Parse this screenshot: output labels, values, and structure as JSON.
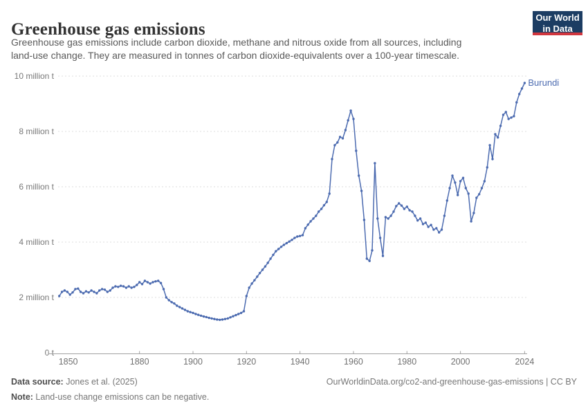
{
  "header": {
    "title": "Greenhouse gas emissions",
    "subtitle_line1": "Greenhouse gas emissions include carbon dioxide, methane and nitrous oxide from all sources, including",
    "subtitle_line2": "land-use change. They are measured in tonnes of carbon dioxide-equivalents over a 100-year timescale.",
    "logo": {
      "line1": "Our World",
      "line2": "in Data",
      "bg_color": "#1c3d63",
      "bar_color": "#d1363e"
    }
  },
  "chart_data": {
    "type": "line",
    "title": "Greenhouse gas emissions",
    "entity": "Burundi",
    "line_color": "#4c6bb0",
    "grid": "horizontal dashed",
    "y_unit": "million tonnes CO2-equivalents",
    "ylim_million_t": [
      0,
      10
    ],
    "x_tick_years": [
      1850,
      1880,
      1900,
      1920,
      1940,
      1960,
      1980,
      2000,
      2024
    ],
    "y_ticks": [
      {
        "value": 0,
        "label": "0 t"
      },
      {
        "value": 2,
        "label": "2 million t"
      },
      {
        "value": 4,
        "label": "4 million t"
      },
      {
        "value": 6,
        "label": "6 million t"
      },
      {
        "value": 8,
        "label": "8 million t"
      },
      {
        "value": 10,
        "label": "10 million t"
      }
    ],
    "x_start_year": 1850,
    "x_end_year": 2024,
    "values_million_t": [
      2.05,
      2.2,
      2.25,
      2.2,
      2.1,
      2.18,
      2.3,
      2.32,
      2.2,
      2.15,
      2.22,
      2.18,
      2.25,
      2.2,
      2.15,
      2.25,
      2.3,
      2.28,
      2.2,
      2.25,
      2.35,
      2.4,
      2.38,
      2.42,
      2.4,
      2.35,
      2.4,
      2.35,
      2.38,
      2.45,
      2.55,
      2.48,
      2.6,
      2.55,
      2.5,
      2.55,
      2.58,
      2.6,
      2.52,
      2.3,
      2.0,
      1.9,
      1.83,
      1.78,
      1.7,
      1.65,
      1.6,
      1.55,
      1.5,
      1.47,
      1.44,
      1.4,
      1.37,
      1.34,
      1.31,
      1.29,
      1.26,
      1.24,
      1.22,
      1.2,
      1.19,
      1.2,
      1.22,
      1.24,
      1.28,
      1.32,
      1.36,
      1.4,
      1.44,
      1.5,
      2.05,
      2.35,
      2.5,
      2.62,
      2.75,
      2.88,
      3.0,
      3.12,
      3.25,
      3.4,
      3.54,
      3.67,
      3.75,
      3.83,
      3.9,
      3.96,
      4.02,
      4.08,
      4.15,
      4.2,
      4.22,
      4.25,
      4.5,
      4.63,
      4.75,
      4.85,
      4.95,
      5.1,
      5.2,
      5.33,
      5.45,
      5.75,
      7.0,
      7.5,
      7.6,
      7.8,
      7.75,
      8.05,
      8.4,
      8.75,
      8.45,
      7.3,
      6.4,
      5.85,
      4.8,
      3.4,
      3.32,
      3.7,
      6.85,
      4.85,
      4.15,
      3.5,
      4.9,
      4.85,
      4.95,
      5.1,
      5.3,
      5.4,
      5.32,
      5.2,
      5.28,
      5.15,
      5.1,
      4.95,
      4.78,
      4.85,
      4.65,
      4.7,
      4.55,
      4.62,
      4.45,
      4.5,
      4.35,
      4.45,
      4.95,
      5.5,
      5.95,
      6.4,
      6.15,
      5.7,
      6.2,
      6.32,
      5.95,
      5.75,
      4.75,
      5.05,
      5.6,
      5.73,
      5.95,
      6.2,
      6.7,
      7.5,
      7.0,
      7.9,
      7.78,
      8.2,
      8.6,
      8.7,
      8.45,
      8.5,
      8.55,
      9.05,
      9.35,
      9.55,
      9.75
    ]
  },
  "footer": {
    "data_source_label": "Data source:",
    "data_source_value": " Jones et al. (2025)",
    "url_text": "OurWorldinData.org/co2-and-greenhouse-gas-emissions | CC BY",
    "note_label": "Note:",
    "note_value": " Land-use change emissions can be negative."
  }
}
